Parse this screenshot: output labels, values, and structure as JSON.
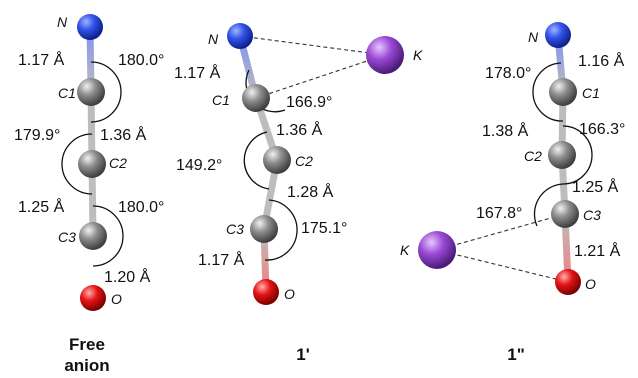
{
  "colors": {
    "nitrogen": "#1f3fd6",
    "carbon": "#7a7a7a",
    "oxygen": "#d90f0f",
    "potassium": "#8a3fc7",
    "bond": "#b8b8b8"
  },
  "panels": [
    {
      "caption_line1": "Free",
      "caption_line2": "anion",
      "atoms": {
        "N": "N",
        "C1": "C1",
        "C2": "C2",
        "C3": "C3",
        "O": "O"
      },
      "bonds": {
        "b1": "1.17 Å",
        "b2": "1.36 Å",
        "b3": "1.25 Å",
        "b4": "1.20 Å"
      },
      "angles": {
        "a1": "180.0°",
        "a2": "179.9°",
        "a3": "180.0°"
      }
    },
    {
      "caption": "1'",
      "atoms": {
        "N": "N",
        "C1": "C1",
        "C2": "C2",
        "C3": "C3",
        "O": "O",
        "K": "K"
      },
      "bonds": {
        "b1": "1.17 Å",
        "b2": "1.36 Å",
        "b3": "1.28 Å",
        "b4": "1.17 Å"
      },
      "angles": {
        "a1": "166.9°",
        "a2": "149.2°",
        "a3": "175.1°"
      }
    },
    {
      "caption": "1\"",
      "atoms": {
        "N": "N",
        "C1": "C1",
        "C2": "C2",
        "C3": "C3",
        "O": "O",
        "K": "K"
      },
      "bonds": {
        "b1": "1.16 Å",
        "b2": "1.38 Å",
        "b3": "1.25 Å",
        "b4": "1.21 Å"
      },
      "angles": {
        "a1": "178.0°",
        "a2": "166.3°",
        "a3": "167.8°"
      }
    }
  ]
}
